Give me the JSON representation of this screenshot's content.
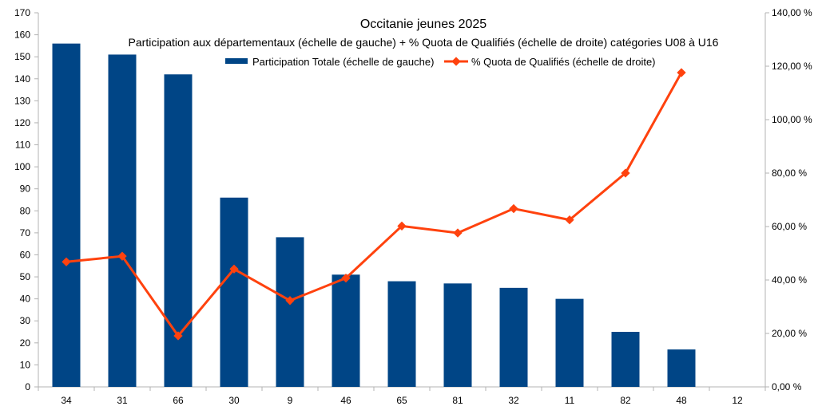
{
  "chart_data": {
    "type": "bar",
    "title": "Occitanie jeunes 2025",
    "subtitle": "Participation aux départementaux (échelle de gauche) + % Quota de Qualifiés (échelle de droite) catégories U08 à U16",
    "categories": [
      "34",
      "31",
      "66",
      "30",
      "9",
      "46",
      "65",
      "81",
      "32",
      "11",
      "82",
      "48",
      "12"
    ],
    "series": [
      {
        "name": "Participation Totale (échelle de gauche)",
        "type": "bar",
        "axis": "left",
        "color": "#004586",
        "values": [
          156,
          151,
          142,
          86,
          68,
          51,
          48,
          47,
          45,
          40,
          25,
          17,
          null
        ]
      },
      {
        "name": "% Quota de Qualifiés (échelle de droite)",
        "type": "line",
        "axis": "right",
        "color": "#ff420e",
        "values": [
          46.8,
          48.9,
          19.1,
          44.1,
          32.3,
          40.7,
          60.2,
          57.6,
          66.7,
          62.5,
          80.0,
          117.6,
          null
        ]
      }
    ],
    "y_left": {
      "min": 0,
      "max": 170,
      "step": 10,
      "ticks": [
        "0",
        "10",
        "20",
        "30",
        "40",
        "50",
        "60",
        "70",
        "80",
        "90",
        "100",
        "110",
        "120",
        "130",
        "140",
        "150",
        "160",
        "170"
      ]
    },
    "y_right": {
      "min": 0,
      "max": 140,
      "step": 20,
      "ticks": [
        "0,00 %",
        "20,00 %",
        "40,00 %",
        "60,00 %",
        "80,00 %",
        "100,00 %",
        "120,00 %",
        "140,00 %"
      ]
    },
    "grid": false,
    "legend_position": "top-center"
  }
}
